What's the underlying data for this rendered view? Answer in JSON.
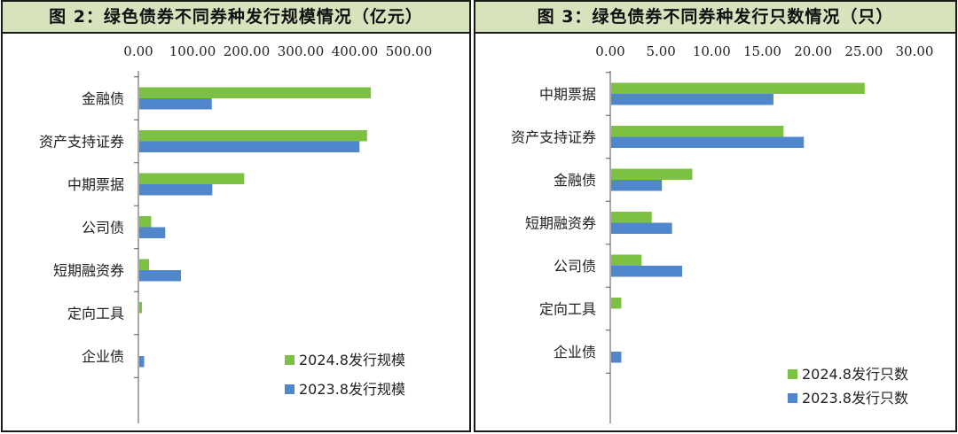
{
  "chart_data": [
    {
      "type": "bar",
      "orientation": "horizontal",
      "title": "图 2：绿色债券不同券种发行规模情况（亿元）",
      "categories": [
        "金融债",
        "资产支持证券",
        "中期票据",
        "公司债",
        "短期融资券",
        "定向工具",
        "企业债"
      ],
      "series": [
        {
          "name": "2024.8发行规模",
          "color": "#7dc142",
          "values": [
            428,
            421,
            194,
            22,
            18,
            5,
            0
          ]
        },
        {
          "name": "2023.8发行规模",
          "color": "#4f86cc",
          "values": [
            134,
            407,
            135,
            48,
            77,
            0,
            9
          ]
        }
      ],
      "xlim": [
        0,
        500
      ],
      "xticks": [
        "0.00",
        "100.00",
        "200.00",
        "300.00",
        "400.00",
        "500.00"
      ],
      "legend": "bottom-right"
    },
    {
      "type": "bar",
      "orientation": "horizontal",
      "title": "图 3：绿色债券不同券种发行只数情况（只）",
      "categories": [
        "中期票据",
        "资产支持证券",
        "金融债",
        "短期融资券",
        "公司债",
        "定向工具",
        "企业债"
      ],
      "series": [
        {
          "name": "2024.8发行只数",
          "color": "#7dc142",
          "values": [
            25,
            17,
            8,
            4,
            3,
            1,
            0
          ]
        },
        {
          "name": "2023.8发行只数",
          "color": "#4f86cc",
          "values": [
            16,
            19,
            5,
            6,
            7,
            0,
            1
          ]
        }
      ],
      "xlim": [
        0,
        30
      ],
      "xticks": [
        "0.00",
        "5.00",
        "10.00",
        "15.00",
        "20.00",
        "25.00",
        "30.00"
      ],
      "legend": "bottom-right"
    }
  ]
}
